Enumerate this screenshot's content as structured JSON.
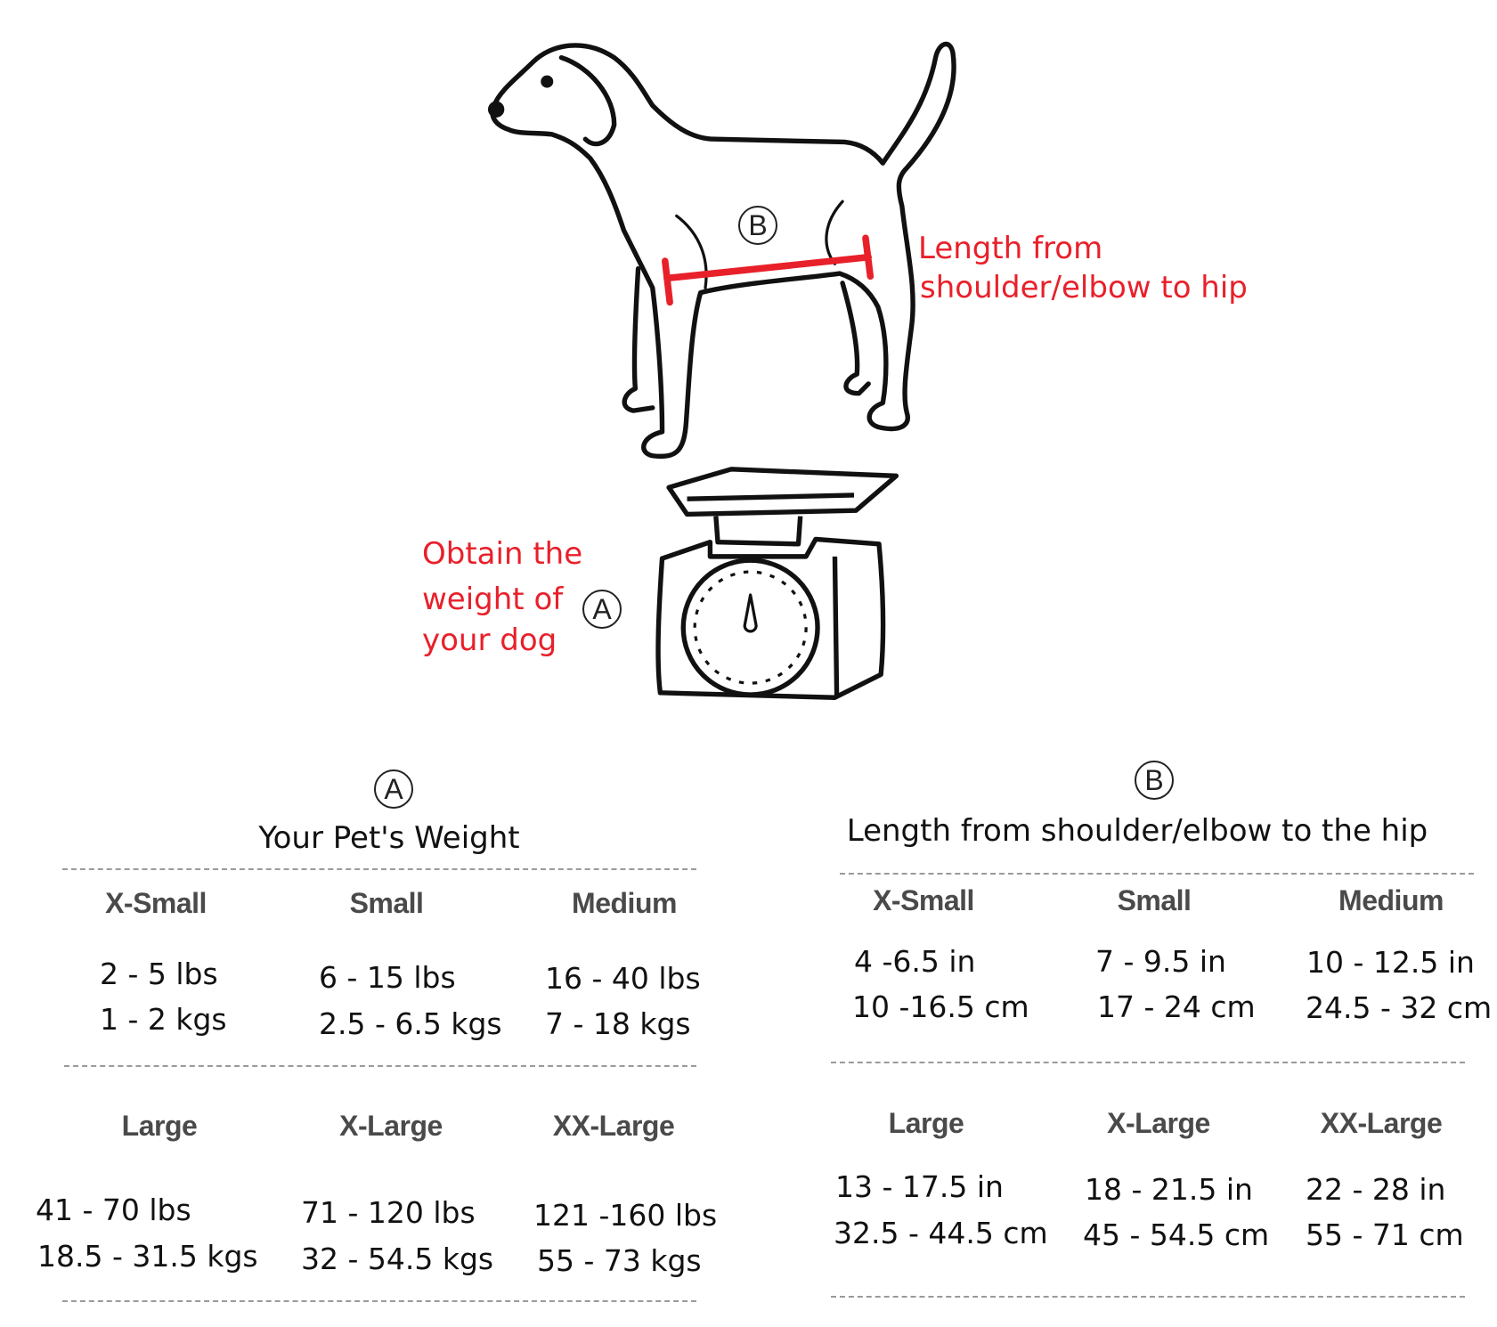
{
  "illustration": {
    "marker_a": "A",
    "marker_b": "B",
    "length_label": [
      "Length from",
      "shoulder/elbow to hip"
    ],
    "weight_label": [
      "Obtain the",
      "weight of",
      "your dog"
    ],
    "accent_color": "#e8202a",
    "icons": [
      "dog-outline",
      "kitchen-scale"
    ]
  },
  "weight_table": {
    "marker": "A",
    "title": "Your Pet's Weight",
    "rows": [
      [
        {
          "size": "X-Small",
          "lines": [
            "2 - 5 lbs",
            "1 - 2 kgs"
          ]
        },
        {
          "size": "Small",
          "lines": [
            "6 - 15 lbs",
            "2.5 - 6.5 kgs"
          ]
        },
        {
          "size": "Medium",
          "lines": [
            "16 - 40 lbs",
            "7 - 18 kgs"
          ]
        }
      ],
      [
        {
          "size": "Large",
          "lines": [
            "41 - 70 lbs",
            "18.5 - 31.5 kgs"
          ]
        },
        {
          "size": "X-Large",
          "lines": [
            "71 - 120 lbs",
            "32 - 54.5 kgs"
          ]
        },
        {
          "size": "XX-Large",
          "lines": [
            "121 -160 lbs",
            "55 - 73 kgs"
          ]
        }
      ]
    ]
  },
  "length_table": {
    "marker": "B",
    "title": "Length from shoulder/elbow to the hip",
    "rows": [
      [
        {
          "size": "X-Small",
          "lines": [
            "4 -6.5 in",
            "10 -16.5 cm"
          ]
        },
        {
          "size": "Small",
          "lines": [
            "7 - 9.5 in",
            "17 - 24 cm"
          ]
        },
        {
          "size": "Medium",
          "lines": [
            "10 - 12.5 in",
            "24.5 - 32 cm"
          ]
        }
      ],
      [
        {
          "size": "Large",
          "lines": [
            "13 - 17.5 in",
            "32.5 - 44.5 cm"
          ]
        },
        {
          "size": "X-Large",
          "lines": [
            "18 - 21.5 in",
            "45 - 54.5 cm"
          ]
        },
        {
          "size": "XX-Large",
          "lines": [
            "22 - 28 in",
            "55 - 71 cm"
          ]
        }
      ]
    ]
  }
}
